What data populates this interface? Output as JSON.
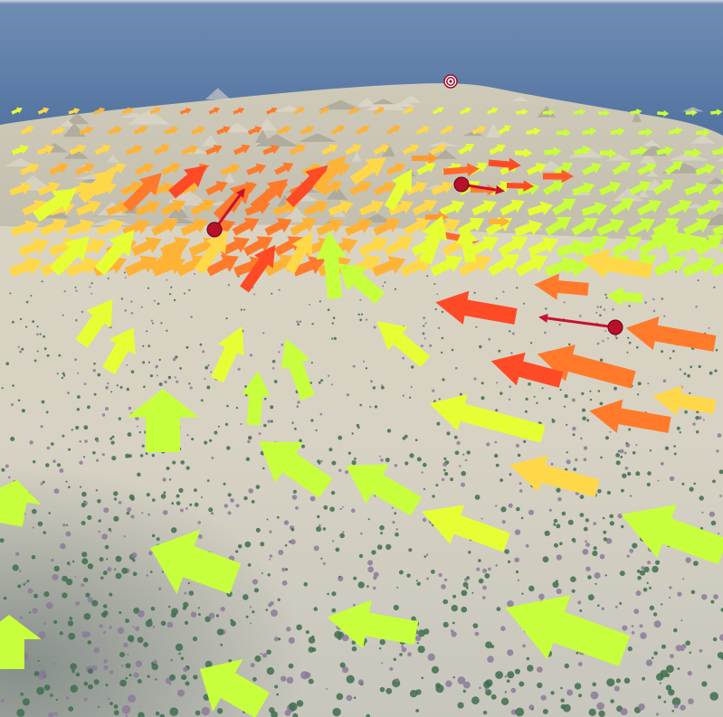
{
  "scene": {
    "sky_color": "#5b7aa4",
    "horizon_color": "#c9d3db",
    "terrain_light": "#d8d2c0",
    "terrain_shadow": "#a7a9a4",
    "foliage_green": "#3e6e4e",
    "foliage_purple": "#8c7a9a",
    "arrow_palette": [
      "#c8ff3c",
      "#e6ff34",
      "#ffd84a",
      "#ffb336",
      "#ff7a2a",
      "#ff4a26"
    ],
    "marker_color": "#c8102e",
    "marker_icon": "bullseye-target-icon",
    "flow_marker_icon": "red-direction-arrow-icon",
    "vector_arrow_icon": "vector-field-arrow-icon"
  }
}
